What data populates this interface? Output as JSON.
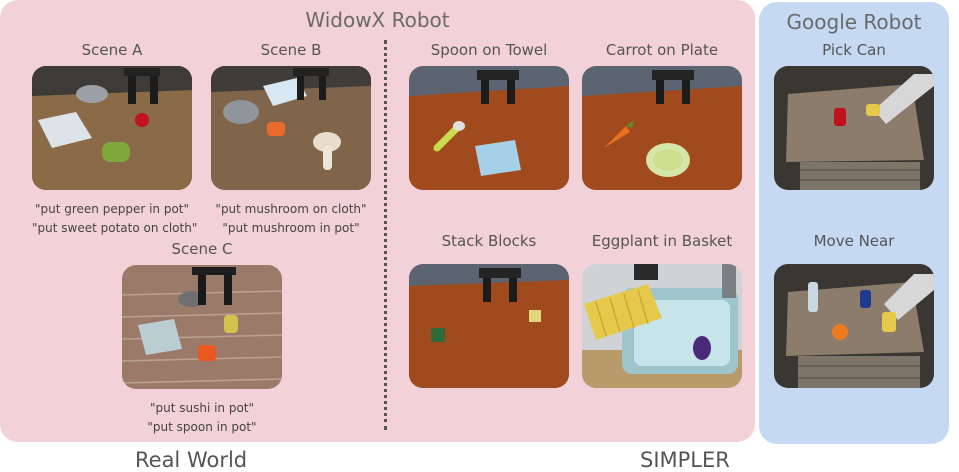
{
  "panels": {
    "widowx_title": "WidowX Robot",
    "google_title": "Google Robot"
  },
  "scenes": {
    "a": {
      "label": "Scene A",
      "captions": [
        "\"put green pepper in pot\"",
        "\"put sweet potato on cloth\""
      ]
    },
    "b": {
      "label": "Scene B",
      "captions": [
        "\"put mushroom on cloth\"",
        "\"put mushroom in pot\""
      ]
    },
    "c": {
      "label": "Scene C",
      "captions": [
        "\"put sushi in pot\"",
        "\"put spoon in pot\""
      ]
    }
  },
  "simpler_tasks": {
    "spoon": "Spoon on Towel",
    "carrot": "Carrot on Plate",
    "stack": "Stack Blocks",
    "eggplant": "Eggplant in Basket"
  },
  "google_tasks": {
    "pick": "Pick Can",
    "move": "Move Near"
  },
  "bottom_labels": {
    "left": "Real World",
    "right": "SIMPLER"
  }
}
